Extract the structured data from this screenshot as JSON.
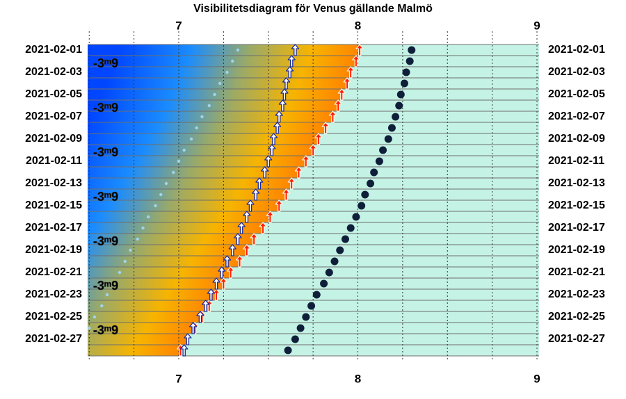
{
  "chart_data": {
    "type": "visibility",
    "title": "Visibilitetsdiagram för Venus gällande Malmö",
    "categories": [
      "2021-02-01",
      null,
      "2021-02-03",
      null,
      "2021-02-05",
      null,
      "2021-02-07",
      null,
      "2021-02-09",
      null,
      "2021-02-11",
      null,
      "2021-02-13",
      null,
      "2021-02-15",
      null,
      "2021-02-17",
      null,
      "2021-02-19",
      null,
      "2021-02-21",
      null,
      "2021-02-23",
      null,
      "2021-02-25",
      null,
      "2021-02-27",
      null
    ],
    "magnitude_labels": [
      null,
      "-3ᵐ9",
      null,
      null,
      null,
      "-3ᵐ9",
      null,
      null,
      null,
      "-3ᵐ9",
      null,
      null,
      null,
      "-3ᵐ9",
      null,
      null,
      null,
      "-3ᵐ9",
      null,
      null,
      null,
      "-3ᵐ9",
      null,
      null,
      null,
      "-3ᵐ9",
      null,
      null
    ],
    "xlim": [
      6.5,
      9
    ],
    "xticks": [
      7,
      8,
      9
    ],
    "xgrid": [
      6.5,
      6.75,
      7,
      7.25,
      7.5,
      7.75,
      8,
      8.25,
      8.5,
      8.75,
      9
    ],
    "series": [
      {
        "marker": "sunrise-arrow",
        "color": "#ff1a00",
        "values": [
          8.01,
          7.99,
          7.96,
          7.94,
          7.91,
          7.89,
          7.86,
          7.82,
          7.78,
          7.75,
          7.71,
          7.67,
          7.63,
          7.6,
          7.56,
          7.51,
          7.47,
          7.42,
          7.38,
          7.34,
          7.29,
          7.25,
          7.21,
          7.17,
          7.13,
          7.09,
          7.05,
          7.01
        ]
      },
      {
        "marker": "rise-arrow",
        "color": "#ffffff",
        "values": [
          7.65,
          7.63,
          7.62,
          7.6,
          7.59,
          7.58,
          7.56,
          7.55,
          7.53,
          7.52,
          7.5,
          7.48,
          7.45,
          7.43,
          7.4,
          7.38,
          7.35,
          7.33,
          7.3,
          7.27,
          7.24,
          7.21,
          7.18,
          7.15,
          7.12,
          7.08,
          7.05,
          7.03
        ]
      },
      {
        "marker": "dot",
        "color": "#0f1f3a",
        "values": [
          8.3,
          8.29,
          8.27,
          8.26,
          8.24,
          8.23,
          8.21,
          8.19,
          8.17,
          8.14,
          8.12,
          8.09,
          8.07,
          8.04,
          8.02,
          7.99,
          7.96,
          7.93,
          7.9,
          7.87,
          7.84,
          7.81,
          7.77,
          7.74,
          7.71,
          7.68,
          7.65,
          7.61
        ]
      },
      {
        "marker": "small-dot",
        "color": "#9fd4f0",
        "values": [
          7.33,
          7.3,
          7.27,
          7.23,
          7.2,
          7.17,
          7.13,
          7.1,
          7.07,
          7.03,
          7.0,
          6.97,
          6.93,
          6.9,
          6.87,
          6.83,
          6.8,
          6.77,
          6.73,
          6.7,
          6.67,
          6.63,
          6.6,
          6.57,
          6.53,
          6.5,
          null,
          null
        ]
      }
    ]
  }
}
